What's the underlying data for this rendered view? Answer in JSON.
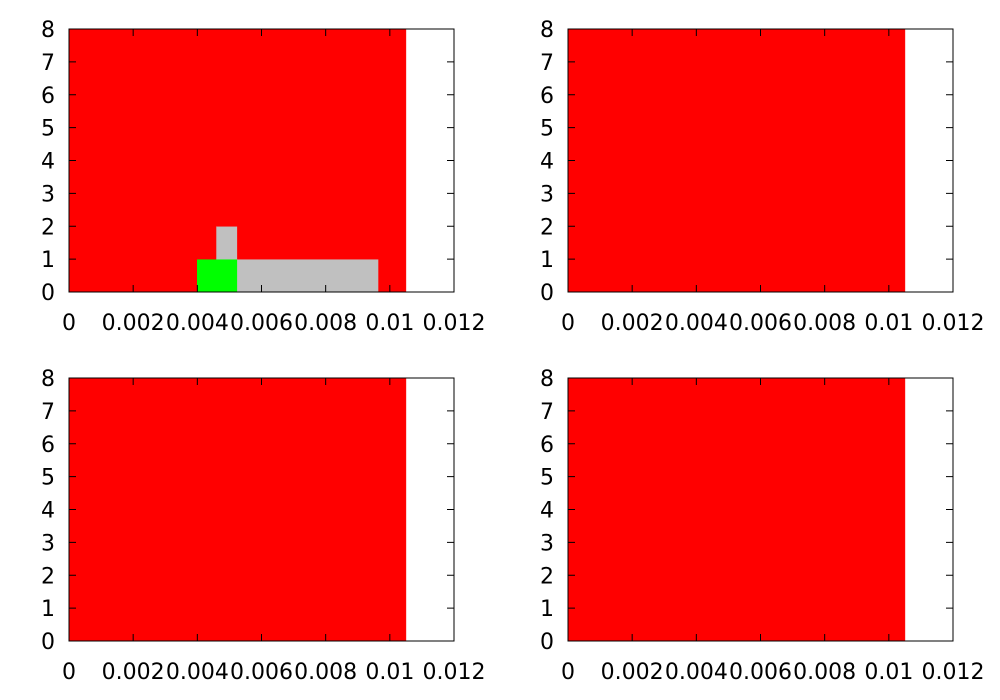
{
  "colors": {
    "red": "#ff0000",
    "green": "#00ff00",
    "gray": "#c0c0c0",
    "axis": "#000000",
    "background": "#ffffff"
  },
  "chart_data": [
    {
      "type": "bar",
      "xlim": [
        0,
        0.012
      ],
      "ylim": [
        0,
        8
      ],
      "x_ticks": [
        0,
        0.002,
        0.004,
        0.006,
        0.008,
        0.01,
        0.012
      ],
      "x_tick_labels": [
        "0",
        "0.002",
        "0.004",
        "0.006",
        "0.008",
        "0.01",
        "0.012"
      ],
      "y_ticks": [
        0,
        1,
        2,
        3,
        4,
        5,
        6,
        7,
        8
      ],
      "y_tick_labels": [
        "0",
        "1",
        "2",
        "3",
        "4",
        "5",
        "6",
        "7",
        "8"
      ],
      "grid": false,
      "segments": [
        {
          "x0": 0,
          "x1": 0.004,
          "y0": 0,
          "y1": 8,
          "color": "red"
        },
        {
          "x0": 0.004,
          "x1": 0.0046,
          "y0": 0,
          "y1": 1,
          "color": "green"
        },
        {
          "x0": 0.004,
          "x1": 0.0046,
          "y0": 1,
          "y1": 8,
          "color": "red"
        },
        {
          "x0": 0.0046,
          "x1": 0.00525,
          "y0": 0,
          "y1": 1,
          "color": "green"
        },
        {
          "x0": 0.0046,
          "x1": 0.00525,
          "y0": 1,
          "y1": 2,
          "color": "gray"
        },
        {
          "x0": 0.0046,
          "x1": 0.00525,
          "y0": 2,
          "y1": 8,
          "color": "red"
        },
        {
          "x0": 0.00525,
          "x1": 0.00965,
          "y0": 0,
          "y1": 1,
          "color": "gray"
        },
        {
          "x0": 0.00525,
          "x1": 0.00965,
          "y0": 1,
          "y1": 8,
          "color": "red"
        },
        {
          "x0": 0.00965,
          "x1": 0.0101,
          "y0": 0,
          "y1": 8,
          "color": "red"
        },
        {
          "x0": 0.0101,
          "x1": 0.0105,
          "y0": 0,
          "y1": 8,
          "color": "red"
        }
      ]
    },
    {
      "type": "bar",
      "xlim": [
        0,
        0.012
      ],
      "ylim": [
        0,
        8
      ],
      "x_ticks": [
        0,
        0.002,
        0.004,
        0.006,
        0.008,
        0.01,
        0.012
      ],
      "x_tick_labels": [
        "0",
        "0.002",
        "0.004",
        "0.006",
        "0.008",
        "0.01",
        "0.012"
      ],
      "y_ticks": [
        0,
        1,
        2,
        3,
        4,
        5,
        6,
        7,
        8
      ],
      "y_tick_labels": [
        "0",
        "1",
        "2",
        "3",
        "4",
        "5",
        "6",
        "7",
        "8"
      ],
      "grid": false,
      "segments": [
        {
          "x0": 0,
          "x1": 0.0105,
          "y0": 0,
          "y1": 8,
          "color": "red"
        }
      ]
    },
    {
      "type": "bar",
      "xlim": [
        0,
        0.012
      ],
      "ylim": [
        0,
        8
      ],
      "x_ticks": [
        0,
        0.002,
        0.004,
        0.006,
        0.008,
        0.01,
        0.012
      ],
      "x_tick_labels": [
        "0",
        "0.002",
        "0.004",
        "0.006",
        "0.008",
        "0.01",
        "0.012"
      ],
      "y_ticks": [
        0,
        1,
        2,
        3,
        4,
        5,
        6,
        7,
        8
      ],
      "y_tick_labels": [
        "0",
        "1",
        "2",
        "3",
        "4",
        "5",
        "6",
        "7",
        "8"
      ],
      "grid": false,
      "segments": [
        {
          "x0": 0,
          "x1": 0.0105,
          "y0": 0,
          "y1": 8,
          "color": "red"
        }
      ]
    },
    {
      "type": "bar",
      "xlim": [
        0,
        0.012
      ],
      "ylim": [
        0,
        8
      ],
      "x_ticks": [
        0,
        0.002,
        0.004,
        0.006,
        0.008,
        0.01,
        0.012
      ],
      "x_tick_labels": [
        "0",
        "0.002",
        "0.004",
        "0.006",
        "0.008",
        "0.01",
        "0.012"
      ],
      "y_ticks": [
        0,
        1,
        2,
        3,
        4,
        5,
        6,
        7,
        8
      ],
      "y_tick_labels": [
        "0",
        "1",
        "2",
        "3",
        "4",
        "5",
        "6",
        "7",
        "8"
      ],
      "grid": false,
      "segments": [
        {
          "x0": 0,
          "x1": 0.0105,
          "y0": 0,
          "y1": 8,
          "color": "red"
        }
      ]
    }
  ]
}
